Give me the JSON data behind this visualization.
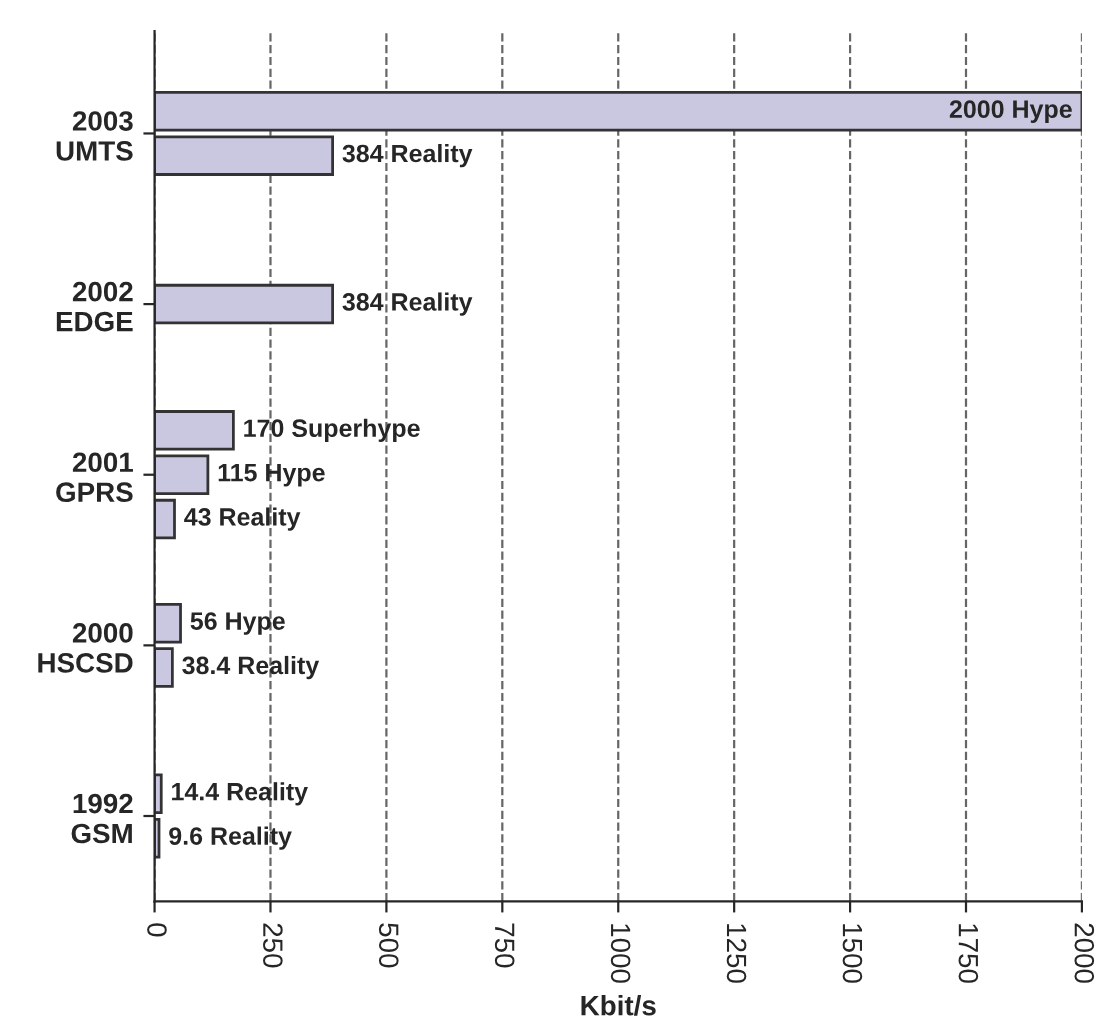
{
  "chart_data": {
    "type": "bar",
    "orientation": "horizontal",
    "xlabel": "Kbit/s",
    "categories": [
      "2003\nUMTS",
      "2002\nEDGE",
      "2001\nGPRS",
      "2000\nHSCSD",
      "1992\nGSM"
    ],
    "series": [
      {
        "color": "#c9c8e0",
        "values": [
          2000,
          384,
          170,
          56,
          14.4
        ],
        "value_labels": [
          "2000 Hype",
          "384 Reality",
          "170 Superhype",
          "56 Hype",
          "14.4 Reality"
        ]
      },
      {
        "color": "#c9c8e0",
        "values": [
          384,
          null,
          115,
          38.4,
          9.6
        ],
        "value_labels": [
          "384 Reality",
          null,
          "115 Hype",
          "38.4 Reality",
          "9.6 Reality"
        ]
      },
      {
        "color": "#c9c8e0",
        "values": [
          null,
          null,
          43,
          null,
          null
        ],
        "value_labels": [
          null,
          null,
          "43 Reality",
          null,
          null
        ]
      }
    ],
    "xlim": [
      0,
      2000
    ],
    "xticks": [
      0,
      250,
      500,
      750,
      1000,
      1250,
      1500,
      1750,
      2000
    ],
    "grid": "x"
  }
}
